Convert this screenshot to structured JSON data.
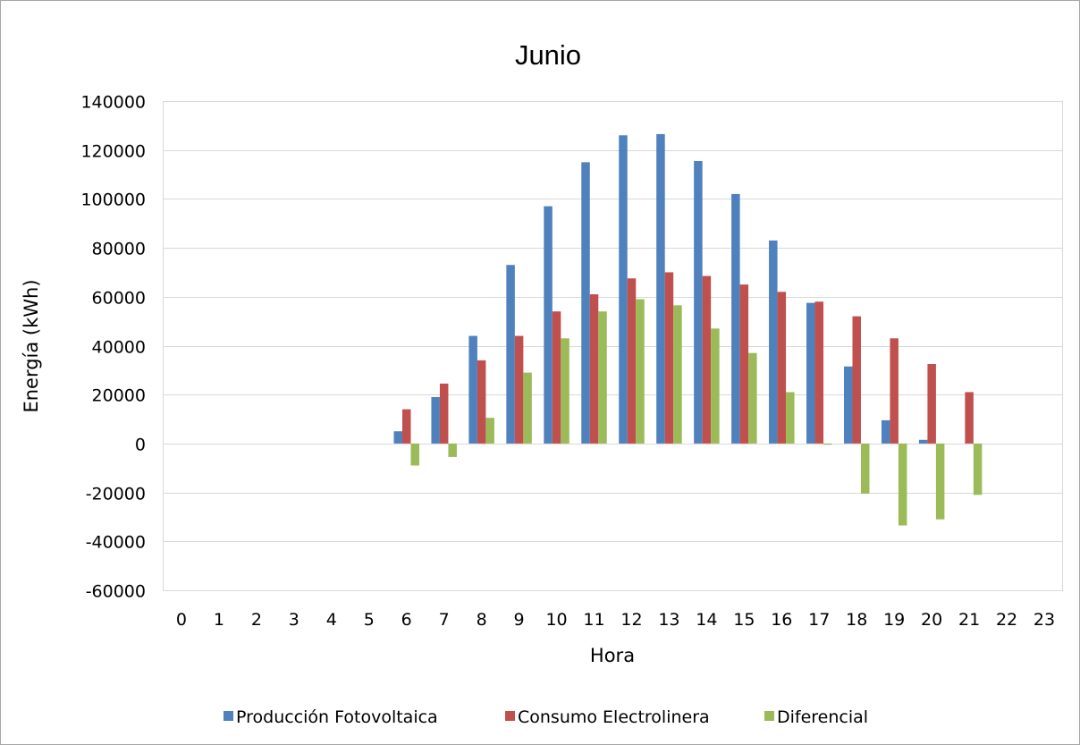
{
  "chart_data": {
    "type": "bar",
    "title": "Junio",
    "xlabel": "Hora",
    "ylabel": "Energía (kWh)",
    "ylim": [
      -60000,
      140000
    ],
    "y_ticks": [
      140000,
      120000,
      100000,
      80000,
      60000,
      40000,
      20000,
      0,
      -20000,
      -40000,
      -60000
    ],
    "y_tick_labels": [
      "140000",
      "120000",
      "100000",
      "80000",
      "60000",
      "40000",
      "20000",
      "0",
      "-20000",
      "-40000",
      "-60000"
    ],
    "grid": true,
    "legend_position": "bottom",
    "categories": [
      "0",
      "1",
      "2",
      "3",
      "4",
      "5",
      "6",
      "7",
      "8",
      "9",
      "10",
      "11",
      "12",
      "13",
      "14",
      "15",
      "16",
      "17",
      "18",
      "19",
      "20",
      "21",
      "22",
      "23"
    ],
    "series": [
      {
        "name": "Producción Fotovoltaica",
        "color": "#4f81bd",
        "values": [
          0,
          0,
          0,
          0,
          0,
          0,
          5000,
          19000,
          44000,
          73000,
          97000,
          115000,
          126000,
          126500,
          115500,
          102000,
          83000,
          57500,
          31500,
          9500,
          1500,
          0,
          0,
          0
        ]
      },
      {
        "name": "Consumo Electrolinera",
        "color": "#c0504d",
        "values": [
          0,
          0,
          0,
          0,
          0,
          0,
          14000,
          24500,
          34000,
          44000,
          54000,
          61000,
          67500,
          70000,
          68500,
          65000,
          62000,
          58000,
          52000,
          43000,
          32500,
          21000,
          0,
          0
        ]
      },
      {
        "name": "Diferencial",
        "color": "#9bbb59",
        "values": [
          0,
          0,
          0,
          0,
          0,
          0,
          -9000,
          -5500,
          10500,
          29000,
          43000,
          54000,
          59000,
          56500,
          47000,
          37000,
          21000,
          -500,
          -20500,
          -33500,
          -31000,
          -21000,
          0,
          0
        ]
      }
    ]
  }
}
